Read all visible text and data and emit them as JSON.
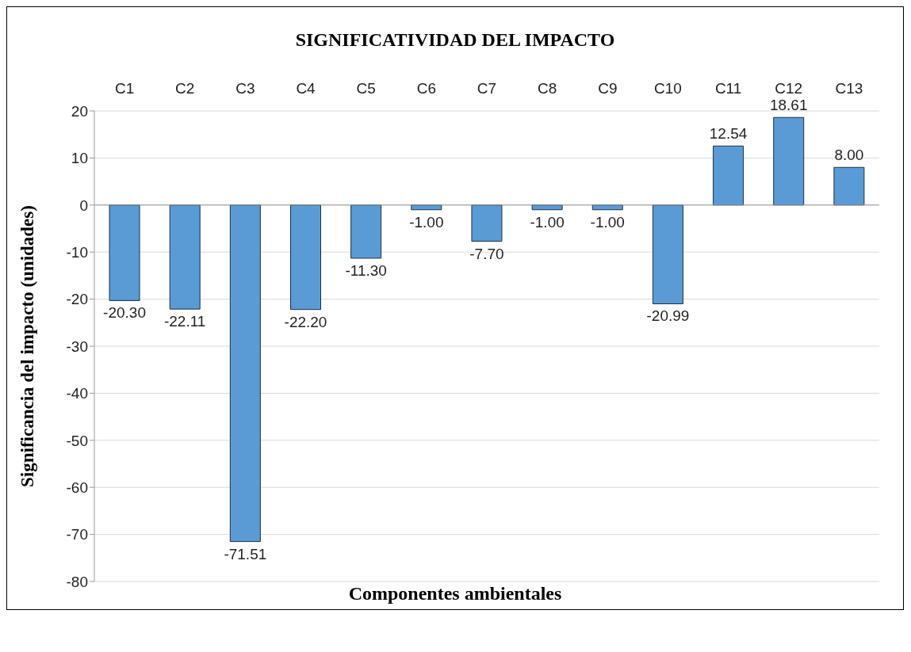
{
  "chart_data": {
    "type": "bar",
    "title": "SIGNIFICATIVIDAD DEL IMPACTO",
    "xlabel": "Componentes ambientales",
    "ylabel": "Significancia del impacto (unidades)",
    "categories": [
      "C1",
      "C2",
      "C3",
      "C4",
      "C5",
      "C6",
      "C7",
      "C8",
      "C9",
      "C10",
      "C11",
      "C12",
      "C13"
    ],
    "values": [
      -20.3,
      -22.11,
      -71.51,
      -22.2,
      -11.3,
      -1.0,
      -7.7,
      -1.0,
      -1.0,
      -20.99,
      12.54,
      18.61,
      8.0
    ],
    "value_labels": [
      "-20.30",
      "-22.11",
      "-71.51",
      "-22.20",
      "-11.30",
      "-1.00",
      "-7.70",
      "-1.00",
      "-1.00",
      "-20.99",
      "12.54",
      "18.61",
      "8.00"
    ],
    "color": "#5b9bd5",
    "ylim": [
      -80,
      20
    ],
    "yticks": [
      -80,
      -70,
      -60,
      -50,
      -40,
      -30,
      -20,
      -10,
      0,
      10,
      20
    ],
    "grid": "y"
  }
}
